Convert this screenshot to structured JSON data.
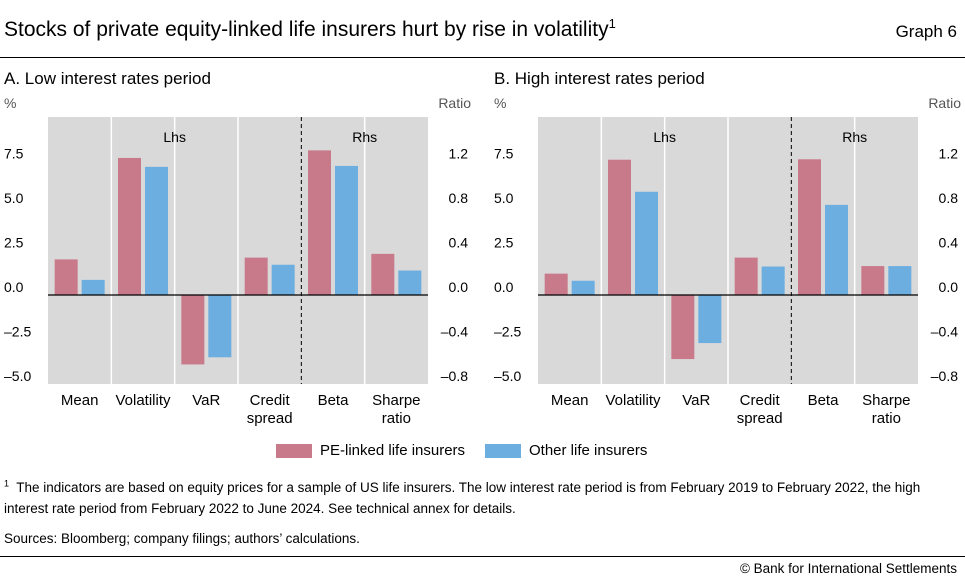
{
  "header": {
    "title": "Stocks of private equity-linked life insurers hurt by rise in volatility",
    "title_note": "1",
    "graph_number": "Graph 6"
  },
  "colors": {
    "pe": "#c97a8a",
    "other": "#6caee0",
    "panel_bg": "#d9d9d9",
    "grid": "#ffffff"
  },
  "chart_data": [
    {
      "type": "bar",
      "panel_title": "A. Low interest rates period",
      "ylabel_left": "%",
      "ylabel_right": "Ratio",
      "ylim_left": [
        -5.0,
        10.0
      ],
      "ylim_right": [
        -0.8,
        1.6
      ],
      "yticks_left": [
        "7.5",
        "5.0",
        "2.5",
        "0.0",
        "–2.5",
        "–5.0"
      ],
      "yticks_right": [
        "1.2",
        "0.8",
        "0.4",
        "0.0",
        "–0.4",
        "–0.8"
      ],
      "group_labels": [
        "Lhs",
        "Rhs"
      ],
      "categories": [
        "Mean",
        "Volatility",
        "VaR",
        "Credit spread",
        "Beta",
        "Sharpe ratio"
      ],
      "axis_side": [
        "left",
        "left",
        "left",
        "left",
        "right",
        "right"
      ],
      "series": [
        {
          "name": "PE-linked life insurers",
          "values": [
            2.0,
            7.7,
            -3.9,
            2.1,
            1.3,
            0.37
          ]
        },
        {
          "name": "Other life insurers",
          "values": [
            0.85,
            7.2,
            -3.5,
            1.7,
            1.16,
            0.22
          ]
        }
      ]
    },
    {
      "type": "bar",
      "panel_title": "B. High interest rates period",
      "ylabel_left": "%",
      "ylabel_right": "Ratio",
      "ylim_left": [
        -5.0,
        10.0
      ],
      "ylim_right": [
        -0.8,
        1.6
      ],
      "yticks_left": [
        "7.5",
        "5.0",
        "2.5",
        "0.0",
        "–2.5",
        "–5.0"
      ],
      "yticks_right": [
        "1.2",
        "0.8",
        "0.4",
        "0.0",
        "–0.4",
        "–0.8"
      ],
      "group_labels": [
        "Lhs",
        "Rhs"
      ],
      "categories": [
        "Mean",
        "Volatility",
        "VaR",
        "Credit spread",
        "Beta",
        "Sharpe ratio"
      ],
      "axis_side": [
        "left",
        "left",
        "left",
        "left",
        "right",
        "right"
      ],
      "series": [
        {
          "name": "PE-linked life insurers",
          "values": [
            1.2,
            7.6,
            -3.6,
            2.1,
            1.22,
            0.26
          ]
        },
        {
          "name": "Other life insurers",
          "values": [
            0.8,
            5.8,
            -2.7,
            1.6,
            0.81,
            0.26
          ]
        }
      ]
    }
  ],
  "legend": {
    "pe_label": "PE-linked life insurers",
    "other_label": "Other life insurers"
  },
  "footnote": {
    "marker": "1",
    "text": "The indicators are based on equity prices for a sample of US life insurers. The low interest rate period is from February 2019 to February 2022, the high interest rate period from February 2022 to June 2024. See technical annex for details."
  },
  "sources": "Sources: Bloomberg; company filings; authors’ calculations.",
  "copyright": "© Bank for International Settlements"
}
